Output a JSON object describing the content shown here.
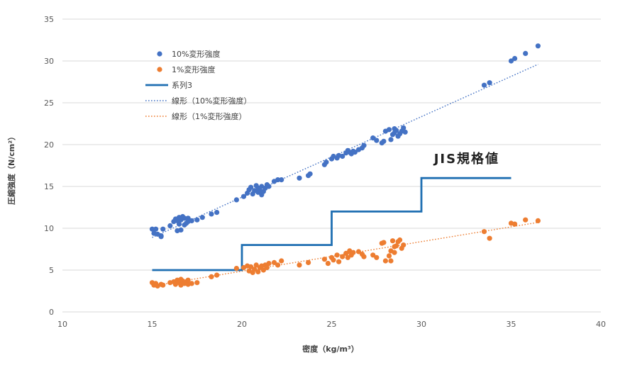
{
  "chart_data": {
    "type": "scatter",
    "title": "",
    "xlabel": "密度（kg/m³）",
    "ylabel": "圧縮強度（N/cm²）",
    "xlim": [
      10,
      40
    ],
    "ylim": [
      0,
      35
    ],
    "xticks": [
      10,
      15,
      20,
      25,
      30,
      35,
      40
    ],
    "yticks": [
      0,
      5,
      10,
      15,
      20,
      25,
      30,
      35
    ],
    "grid": "horizontal",
    "legend_position": "top-left",
    "annotations": [
      {
        "text": "JIS規格値",
        "x": 30.7,
        "y": 18.4
      }
    ],
    "series": [
      {
        "name": "10%変形強度",
        "kind": "scatter",
        "color": "#4472C4",
        "points": [
          [
            15.0,
            9.9
          ],
          [
            15.1,
            9.4
          ],
          [
            15.2,
            9.9
          ],
          [
            15.3,
            9.3
          ],
          [
            15.5,
            9.1
          ],
          [
            15.6,
            9.9
          ],
          [
            15.5,
            9.0
          ],
          [
            16.0,
            10.3
          ],
          [
            16.2,
            10.8
          ],
          [
            16.3,
            11.1
          ],
          [
            16.4,
            10.9
          ],
          [
            16.4,
            9.7
          ],
          [
            16.5,
            11.3
          ],
          [
            16.5,
            10.5
          ],
          [
            16.6,
            11.0
          ],
          [
            16.6,
            9.8
          ],
          [
            16.7,
            11.4
          ],
          [
            16.8,
            11.2
          ],
          [
            16.8,
            10.4
          ],
          [
            16.9,
            10.6
          ],
          [
            17.0,
            11.2
          ],
          [
            17.0,
            10.8
          ],
          [
            17.2,
            10.9
          ],
          [
            17.5,
            11.0
          ],
          [
            17.8,
            11.3
          ],
          [
            18.3,
            11.7
          ],
          [
            18.6,
            11.9
          ],
          [
            19.7,
            13.4
          ],
          [
            20.1,
            13.8
          ],
          [
            20.3,
            14.2
          ],
          [
            20.4,
            14.6
          ],
          [
            20.5,
            14.9
          ],
          [
            20.6,
            14.1
          ],
          [
            20.7,
            14.5
          ],
          [
            20.8,
            15.1
          ],
          [
            20.9,
            14.3
          ],
          [
            20.9,
            14.8
          ],
          [
            21.0,
            14.5
          ],
          [
            21.1,
            14.0
          ],
          [
            21.1,
            15.0
          ],
          [
            21.2,
            14.4
          ],
          [
            21.3,
            14.8
          ],
          [
            21.4,
            15.2
          ],
          [
            21.5,
            15.0
          ],
          [
            21.8,
            15.6
          ],
          [
            22.0,
            15.8
          ],
          [
            22.2,
            15.8
          ],
          [
            23.2,
            16.0
          ],
          [
            23.7,
            16.3
          ],
          [
            23.8,
            16.5
          ],
          [
            24.6,
            17.6
          ],
          [
            24.7,
            17.9
          ],
          [
            25.0,
            18.3
          ],
          [
            25.1,
            18.6
          ],
          [
            25.3,
            18.4
          ],
          [
            25.4,
            18.7
          ],
          [
            25.6,
            18.6
          ],
          [
            25.8,
            19.0
          ],
          [
            25.9,
            19.3
          ],
          [
            26.0,
            19.1
          ],
          [
            26.1,
            18.9
          ],
          [
            26.2,
            19.2
          ],
          [
            26.3,
            19.1
          ],
          [
            26.5,
            19.4
          ],
          [
            26.7,
            19.6
          ],
          [
            26.8,
            19.9
          ],
          [
            27.3,
            20.8
          ],
          [
            27.5,
            20.5
          ],
          [
            27.8,
            20.2
          ],
          [
            27.9,
            20.4
          ],
          [
            28.0,
            21.6
          ],
          [
            28.2,
            21.8
          ],
          [
            28.3,
            20.6
          ],
          [
            28.4,
            21.2
          ],
          [
            28.5,
            21.9
          ],
          [
            28.5,
            21.4
          ],
          [
            28.6,
            21.7
          ],
          [
            28.7,
            21.0
          ],
          [
            28.8,
            21.3
          ],
          [
            28.9,
            21.6
          ],
          [
            29.0,
            22.0
          ],
          [
            29.1,
            21.5
          ],
          [
            33.5,
            27.1
          ],
          [
            33.8,
            27.4
          ],
          [
            35.0,
            30.0
          ],
          [
            35.2,
            30.3
          ],
          [
            35.8,
            30.9
          ],
          [
            36.5,
            31.8
          ]
        ]
      },
      {
        "name": "1%変形強度",
        "kind": "scatter",
        "color": "#ED7D31",
        "points": [
          [
            15.0,
            3.5
          ],
          [
            15.1,
            3.2
          ],
          [
            15.2,
            3.4
          ],
          [
            15.3,
            3.1
          ],
          [
            15.5,
            3.3
          ],
          [
            15.6,
            3.2
          ],
          [
            16.0,
            3.5
          ],
          [
            16.2,
            3.6
          ],
          [
            16.3,
            3.3
          ],
          [
            16.4,
            3.8
          ],
          [
            16.5,
            3.5
          ],
          [
            16.6,
            3.9
          ],
          [
            16.6,
            3.2
          ],
          [
            16.7,
            3.7
          ],
          [
            16.8,
            3.4
          ],
          [
            16.9,
            3.6
          ],
          [
            17.0,
            3.3
          ],
          [
            17.0,
            3.8
          ],
          [
            17.2,
            3.4
          ],
          [
            17.5,
            3.5
          ],
          [
            18.3,
            4.2
          ],
          [
            18.6,
            4.4
          ],
          [
            19.7,
            5.2
          ],
          [
            20.1,
            5.3
          ],
          [
            20.3,
            5.5
          ],
          [
            20.4,
            4.9
          ],
          [
            20.5,
            5.4
          ],
          [
            20.6,
            4.7
          ],
          [
            20.7,
            5.1
          ],
          [
            20.8,
            5.6
          ],
          [
            20.9,
            4.8
          ],
          [
            21.0,
            5.3
          ],
          [
            21.1,
            5.5
          ],
          [
            21.2,
            5.0
          ],
          [
            21.3,
            5.6
          ],
          [
            21.4,
            5.3
          ],
          [
            21.5,
            5.8
          ],
          [
            21.8,
            5.9
          ],
          [
            22.0,
            5.6
          ],
          [
            22.2,
            6.1
          ],
          [
            23.2,
            5.6
          ],
          [
            23.7,
            5.9
          ],
          [
            24.6,
            6.3
          ],
          [
            24.8,
            5.8
          ],
          [
            25.0,
            6.5
          ],
          [
            25.1,
            6.2
          ],
          [
            25.3,
            6.8
          ],
          [
            25.4,
            6.0
          ],
          [
            25.6,
            6.6
          ],
          [
            25.8,
            7.0
          ],
          [
            25.9,
            6.5
          ],
          [
            26.0,
            7.3
          ],
          [
            26.1,
            6.8
          ],
          [
            26.2,
            7.1
          ],
          [
            26.5,
            7.2
          ],
          [
            26.7,
            6.9
          ],
          [
            26.8,
            6.6
          ],
          [
            27.3,
            6.8
          ],
          [
            27.5,
            6.5
          ],
          [
            27.8,
            8.2
          ],
          [
            27.9,
            8.3
          ],
          [
            28.0,
            6.1
          ],
          [
            28.2,
            6.7
          ],
          [
            28.3,
            7.3
          ],
          [
            28.4,
            8.5
          ],
          [
            28.5,
            7.8
          ],
          [
            28.5,
            7.1
          ],
          [
            28.6,
            7.9
          ],
          [
            28.7,
            8.4
          ],
          [
            28.8,
            8.6
          ],
          [
            28.9,
            7.6
          ],
          [
            29.0,
            8.0
          ],
          [
            28.3,
            6.1
          ],
          [
            33.5,
            9.6
          ],
          [
            33.8,
            8.8
          ],
          [
            35.0,
            10.6
          ],
          [
            35.2,
            10.5
          ],
          [
            35.8,
            11.0
          ],
          [
            36.5,
            10.9
          ]
        ]
      },
      {
        "name": "系列3",
        "kind": "step",
        "color": "#1F6FB2",
        "points": [
          [
            15,
            5
          ],
          [
            20,
            5
          ],
          [
            20,
            8
          ],
          [
            25,
            8
          ],
          [
            25,
            12
          ],
          [
            30,
            12
          ],
          [
            30,
            16
          ],
          [
            35,
            16
          ]
        ]
      },
      {
        "name": "線形（10%変形強度）",
        "kind": "trend",
        "color": "#4472C4",
        "points": [
          [
            15,
            8.9
          ],
          [
            36.5,
            29.6
          ]
        ]
      },
      {
        "name": "線形（1%変形強度）",
        "kind": "trend",
        "color": "#ED7D31",
        "points": [
          [
            15,
            3.1
          ],
          [
            36.5,
            10.7
          ]
        ]
      }
    ]
  }
}
